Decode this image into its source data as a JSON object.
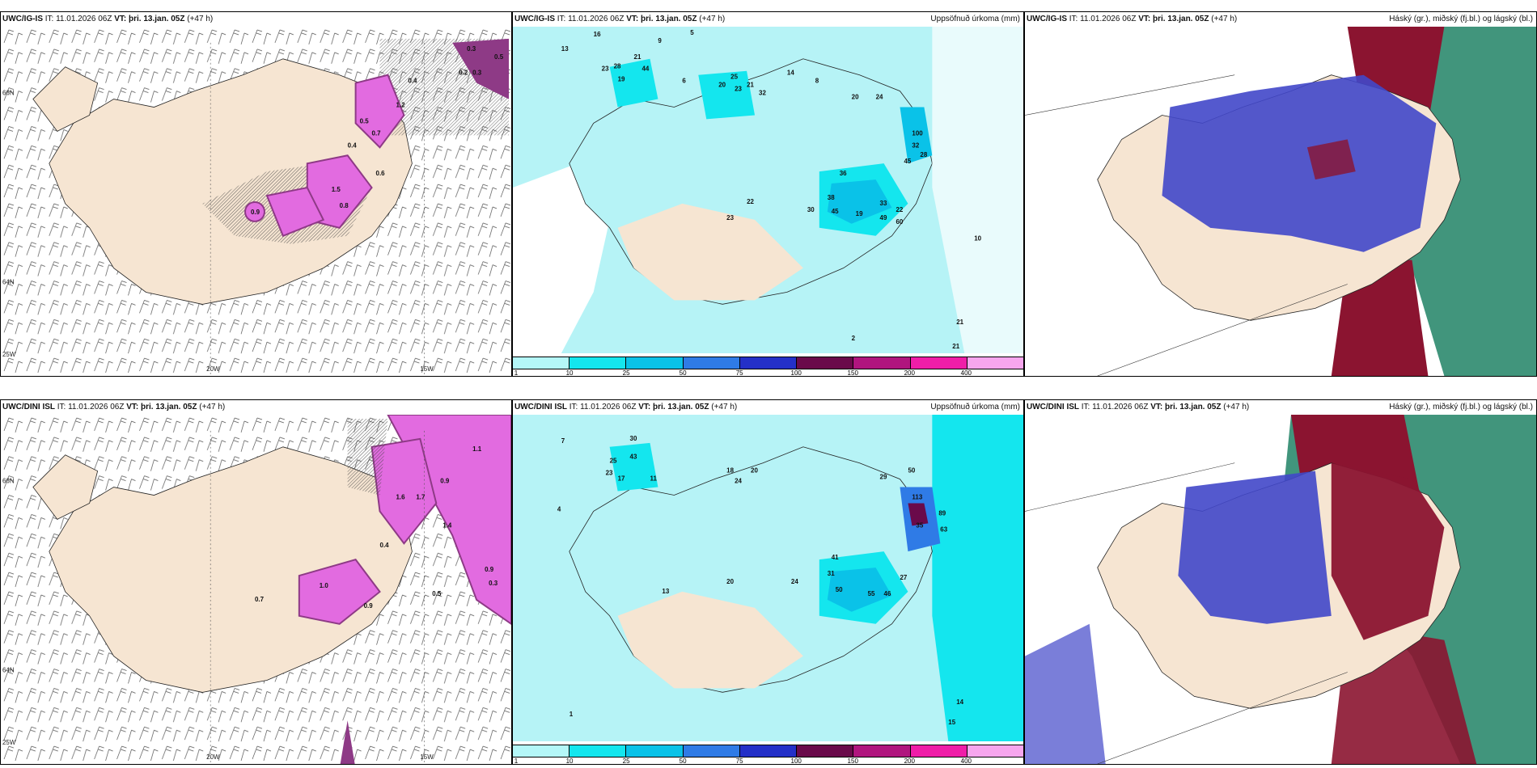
{
  "panels": {
    "r1c1": {
      "header_prefix": "UWC/IG-IS",
      "header_it": " IT: 11.01.2026 06Z ",
      "header_vt": "VT: þri. 13.jan. 05Z",
      "header_lead": " (+47 h)",
      "right_title": "",
      "lon_labels": [
        "20W",
        "15W"
      ],
      "lat_labels": [
        "66N",
        "64N",
        "25W"
      ]
    },
    "r1c2": {
      "header_prefix": "UWC/IG-IS",
      "header_it": " IT: 11.01.2026 06Z ",
      "header_vt": "VT: þri. 13.jan. 05Z",
      "header_lead": " (+47 h)",
      "right_title": "Uppsöfnuð úrkoma (mm)"
    },
    "r1c3": {
      "header_prefix": "UWC/IG-IS",
      "header_it": " IT: 11.01.2026 06Z ",
      "header_vt": "VT: þri. 13.jan. 05Z",
      "header_lead": " (+47 h)",
      "right_title": "Háský (gr.), miðský (fj.bl.) og lágský (bl.)"
    },
    "r2c1": {
      "header_prefix": "UWC/DINI ISL",
      "header_it": " IT: 11.01.2026 06Z ",
      "header_vt": "VT: þri. 13.jan. 05Z",
      "header_lead": " (+47 h)",
      "right_title": "",
      "lon_labels": [
        "20W",
        "15W"
      ],
      "lat_labels": [
        "66N",
        "64N",
        "25W"
      ]
    },
    "r2c2": {
      "header_prefix": "UWC/DINI ISL",
      "header_it": " IT: 11.01.2026 06Z ",
      "header_vt": "VT: þri. 13.jan. 05Z",
      "header_lead": " (+47 h)",
      "right_title": "Uppsöfnuð úrkoma (mm)"
    },
    "r2c3": {
      "header_prefix": "UWC/DINI ISL",
      "header_it": " IT: 11.01.2026 06Z ",
      "header_vt": "VT: þri. 13.jan. 05Z",
      "header_lead": " (+47 h)",
      "right_title": "Háský (gr.), miðský (fj.bl.) og lágský (bl.)"
    }
  },
  "precip_colorbar": {
    "labels": [
      "1",
      "10",
      "25",
      "50",
      "75",
      "100",
      "150",
      "200",
      "400"
    ],
    "colors": [
      "#b4f7f8",
      "#14e6ee",
      "#0ac2e8",
      "#2f7be6",
      "#2430c8",
      "#6a0a4a",
      "#b0157e",
      "#ef1ea8",
      "#f7a6ee"
    ]
  },
  "colors": {
    "land": "#f6e5d2",
    "sea_precip": "#b6f3f6",
    "ice_purple": "#8e3a86",
    "magenta": "#e26be0",
    "cloud_blue": "#4147c9",
    "cloud_red": "#8b1430",
    "cloud_green": "#2c8a6e"
  },
  "precip_values_top": [
    "16",
    "9",
    "5",
    "13",
    "23",
    "28",
    "21",
    "44",
    "19",
    "6",
    "25",
    "23",
    "20",
    "21",
    "14",
    "32",
    "8",
    "20",
    "24",
    "100",
    "36",
    "32",
    "45",
    "28",
    "30",
    "22",
    "38",
    "45",
    "49",
    "60",
    "33",
    "19",
    "23",
    "10",
    "21",
    "22",
    "21",
    "2"
  ],
  "precip_values_bottom": [
    "7",
    "4",
    "30",
    "25",
    "43",
    "23",
    "17",
    "11",
    "18",
    "24",
    "20",
    "29",
    "50",
    "113",
    "89",
    "35",
    "50",
    "41",
    "31",
    "27",
    "46",
    "63",
    "55",
    "20",
    "24",
    "13",
    "14",
    "15",
    "1"
  ],
  "ice_values_top": [
    "0.3",
    "0.5",
    "0.2",
    "0.3",
    "0.4",
    "1.2",
    "0.5",
    "0.7",
    "0.9",
    "1.5",
    "0.4",
    "0.8",
    "0.6"
  ],
  "ice_values_bottom": [
    "1.1",
    "0.9",
    "1.6",
    "1.7",
    "1.4",
    "0.4",
    "0.7",
    "1.0",
    "0.9",
    "0.5",
    "0.9",
    "0.3"
  ]
}
